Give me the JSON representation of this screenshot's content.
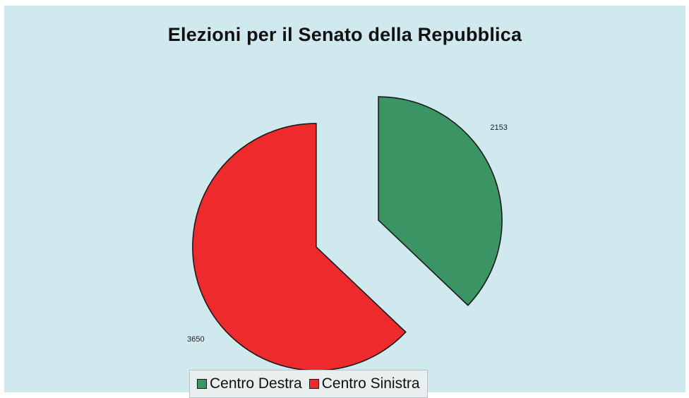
{
  "chart_data": {
    "type": "pie",
    "title": "Elezioni per il Senato della Repubblica",
    "slices": [
      {
        "name": "Centro Destra",
        "value": 2153,
        "label": "2153",
        "color": "#3a9463",
        "exploded": true
      },
      {
        "name": "Centro Sinistra",
        "value": 3650,
        "label": "3650",
        "color": "#ee2a2c",
        "exploded": true
      }
    ],
    "start_angle": "12 o'clock, clockwise",
    "legend_position": "bottom-center"
  }
}
